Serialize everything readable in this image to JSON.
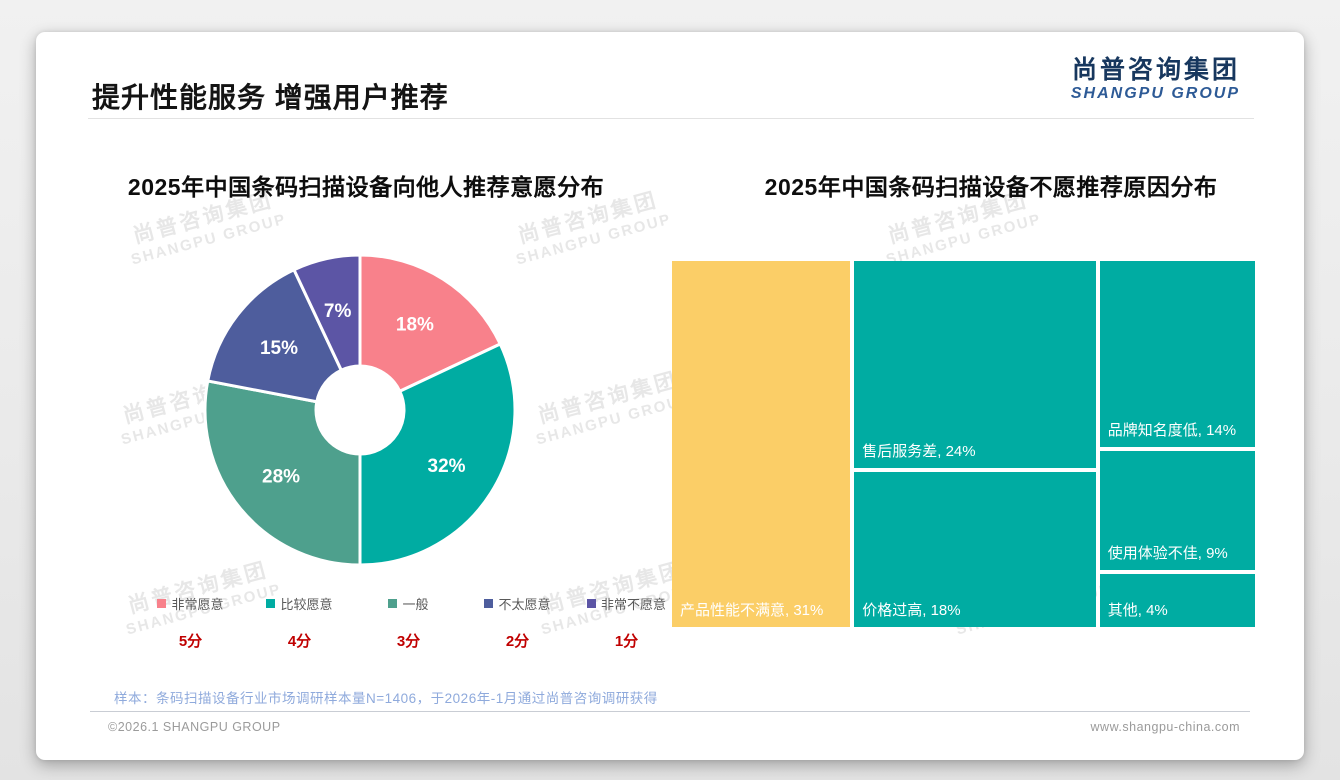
{
  "page": {
    "title": "提升性能服务 增强用户推荐",
    "logo": {
      "cn": "尚普咨询集团",
      "en": "SHANGPU GROUP"
    },
    "watermark": {
      "cn": "尚普咨询集团",
      "en": "SHANGPU GROUP"
    },
    "footnote": "样本：条码扫描设备行业市场调研样本量N=1406，于2026年-1月通过尚普咨询调研获得",
    "copyright": "©2026.1 SHANGPU GROUP",
    "website": "www.shangpu-china.com"
  },
  "colors": {
    "logo_navy": "#17375e",
    "logo_blue": "#2d5a96",
    "score_red": "#c00000",
    "legend_text": "#595959",
    "footnote_blue": "#8faadc",
    "treemap_teal": "#00aca2",
    "treemap_yellow": "#fbce67"
  },
  "chart_data": [
    {
      "type": "pie",
      "donut": true,
      "title": "2025年中国条码扫描设备向他人推荐意愿分布",
      "labels": [
        "非常愿意",
        "比较愿意",
        "一般",
        "不太愿意",
        "非常不愿意"
      ],
      "values": [
        18,
        32,
        28,
        15,
        7
      ],
      "value_labels": [
        "18%",
        "32%",
        "28%",
        "15%",
        "7%"
      ],
      "scores": [
        "5分",
        "4分",
        "3分",
        "2分",
        "1分"
      ],
      "colors": [
        "#f8818b",
        "#00aca2",
        "#4ea08d",
        "#4e5d9d",
        "#5c55a5"
      ],
      "start_angle_deg": 0,
      "direction": "clockwise",
      "legend_position": "bottom"
    },
    {
      "type": "treemap",
      "title": "2025年中国条码扫描设备不愿推荐原因分布",
      "items": [
        {
          "label": "产品性能不满意",
          "value": 31,
          "color": "#fbce67"
        },
        {
          "label": "售后服务差",
          "value": 24,
          "color": "#00aca2"
        },
        {
          "label": "价格过高",
          "value": 18,
          "color": "#00aca2"
        },
        {
          "label": "品牌知名度低",
          "value": 14,
          "color": "#00aca2"
        },
        {
          "label": "使用体验不佳",
          "value": 9,
          "color": "#00aca2"
        },
        {
          "label": "其他",
          "value": 4,
          "color": "#00aca2"
        }
      ],
      "columns": [
        [
          0
        ],
        [
          1,
          2
        ],
        [
          3,
          4,
          5
        ]
      ],
      "label_format": "{label}, {value}%"
    }
  ]
}
